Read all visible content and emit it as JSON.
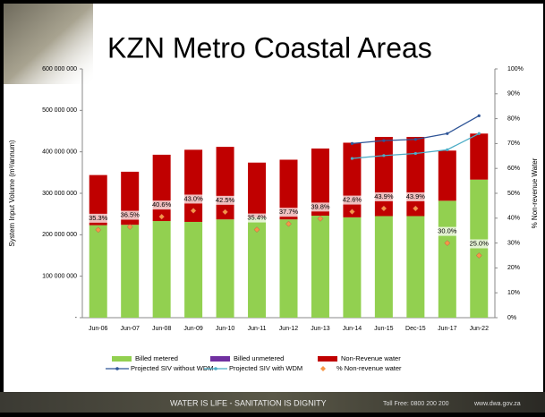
{
  "chart_data": {
    "type": "bar",
    "title": "KZN Metro Coastal Areas",
    "y_label": "System Input Volume (m³/annum)",
    "y2_label": "% Non-revenue Water",
    "categories": [
      "Jun-06",
      "Jun-07",
      "Jun-08",
      "Jun-09",
      "Jun-10",
      "Jun-11",
      "Jun-12",
      "Jun-13",
      "Jun-14",
      "Jun-15",
      "Dec-15",
      "Jun-17",
      "Jun-22"
    ],
    "ylim": [
      0,
      600000000
    ],
    "yticks": [
      {
        "value": 0,
        "label": "-"
      },
      {
        "value": 100000000,
        "label": "100 000 000"
      },
      {
        "value": 200000000,
        "label": "200 000 000"
      },
      {
        "value": 300000000,
        "label": "300 000 000"
      },
      {
        "value": 400000000,
        "label": "400 000 000"
      },
      {
        "value": 500000000,
        "label": "500 000 000"
      },
      {
        "value": 600000000,
        "label": "600 000 000"
      }
    ],
    "y2lim": [
      0,
      100
    ],
    "y2ticks": [
      {
        "value": 0,
        "label": "0%"
      },
      {
        "value": 10,
        "label": "10%"
      },
      {
        "value": 20,
        "label": "20%"
      },
      {
        "value": 30,
        "label": "30%"
      },
      {
        "value": 40,
        "label": "40%"
      },
      {
        "value": 50,
        "label": "50%"
      },
      {
        "value": 60,
        "label": "60%"
      },
      {
        "value": 70,
        "label": "70%"
      },
      {
        "value": 80,
        "label": "80%"
      },
      {
        "value": 90,
        "label": "90%"
      },
      {
        "value": 100,
        "label": "100%"
      }
    ],
    "series": [
      {
        "name": "Billed metered",
        "type": "bar",
        "color": "#92d050",
        "values": [
          223000000,
          224000000,
          233000000,
          231000000,
          237000000,
          242000000,
          237000000,
          246000000,
          242000000,
          245000000,
          245000000,
          282000000,
          333000000
        ]
      },
      {
        "name": "Billed unmetered",
        "type": "bar",
        "color": "#7030a0",
        "values": [
          0,
          0,
          0,
          0,
          0,
          0,
          0,
          0,
          0,
          0,
          0,
          0,
          0
        ]
      },
      {
        "name": "Non-Revenue water",
        "type": "bar",
        "color": "#c00000",
        "values": [
          121000000,
          128000000,
          160000000,
          174000000,
          175000000,
          132000000,
          144000000,
          162000000,
          180000000,
          191000000,
          191000000,
          121000000,
          111000000
        ]
      },
      {
        "name": "Projected SIV without WDM",
        "type": "line",
        "color": "#2f5597",
        "values": [
          null,
          null,
          null,
          null,
          null,
          null,
          null,
          null,
          420000000,
          427000000,
          430000000,
          444000000,
          487000000
        ]
      },
      {
        "name": "Projected SIV with WDM",
        "type": "line",
        "color": "#4bacc6",
        "values": [
          null,
          null,
          null,
          null,
          null,
          null,
          null,
          null,
          384000000,
          391000000,
          396000000,
          405000000,
          444000000
        ]
      },
      {
        "name": "% Non-revenue water",
        "type": "scatter",
        "axis": "y2",
        "color": "#f79646",
        "values": [
          35.3,
          36.5,
          40.6,
          43.0,
          42.5,
          35.4,
          37.7,
          39.8,
          42.6,
          43.9,
          43.9,
          30.0,
          25.0
        ],
        "value_labels": [
          "35.3%",
          "36.5%",
          "40.6%",
          "43.0%",
          "42.5%",
          "35.4%",
          "37.7%",
          "39.8%",
          "42.6%",
          "43.9%",
          "43.9%",
          "30.0%",
          "25.0%"
        ]
      }
    ]
  },
  "footer": {
    "motto": "WATER IS LIFE - SANITATION IS DIGNITY",
    "phone": "Toll Free: 0800 200 200",
    "web": "www.dwa.gov.za"
  }
}
